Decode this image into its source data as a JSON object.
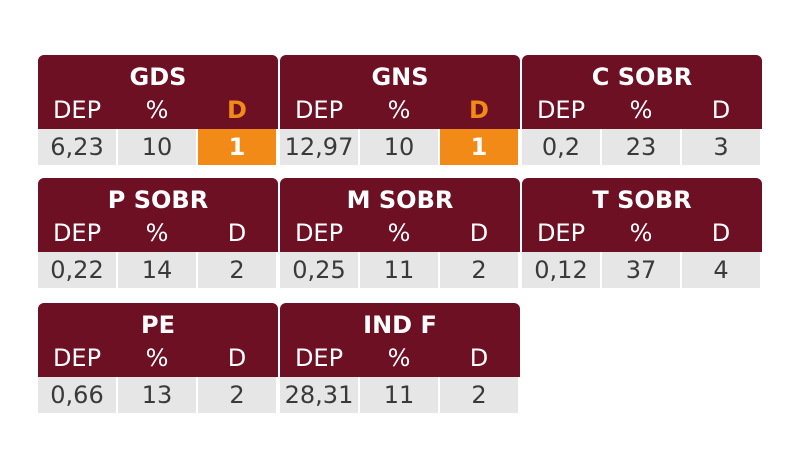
{
  "cards": [
    {
      "title": "GDS",
      "cols": [
        "DEP",
        "%",
        "D"
      ],
      "values": [
        "6,23",
        "10",
        "1"
      ]
    },
    {
      "title": "GNS",
      "cols": [
        "DEP",
        "%",
        "D"
      ],
      "values": [
        "12,97",
        "10",
        "1"
      ]
    },
    {
      "title": "C SOBR",
      "cols": [
        "DEP",
        "%",
        "D"
      ],
      "values": [
        "0,2",
        "23",
        "3"
      ]
    },
    {
      "title": "P SOBR",
      "cols": [
        "DEP",
        "%",
        "D"
      ],
      "values": [
        "0,22",
        "14",
        "2"
      ]
    },
    {
      "title": "M SOBR",
      "cols": [
        "DEP",
        "%",
        "D"
      ],
      "values": [
        "0,25",
        "11",
        "2"
      ]
    },
    {
      "title": "T SOBR",
      "cols": [
        "DEP",
        "%",
        "D"
      ],
      "values": [
        "0,12",
        "37",
        "4"
      ]
    },
    {
      "title": "PE",
      "cols": [
        "DEP",
        "%",
        "D"
      ],
      "values": [
        "0,66",
        "13",
        "2"
      ]
    },
    {
      "title": "IND F",
      "cols": [
        "DEP",
        "%",
        "D"
      ],
      "values": [
        "28,31",
        "11",
        "2"
      ]
    }
  ],
  "colors": {
    "header": "#6d1023",
    "highlight": "#f28a17",
    "cell": "#e6e6e6"
  }
}
